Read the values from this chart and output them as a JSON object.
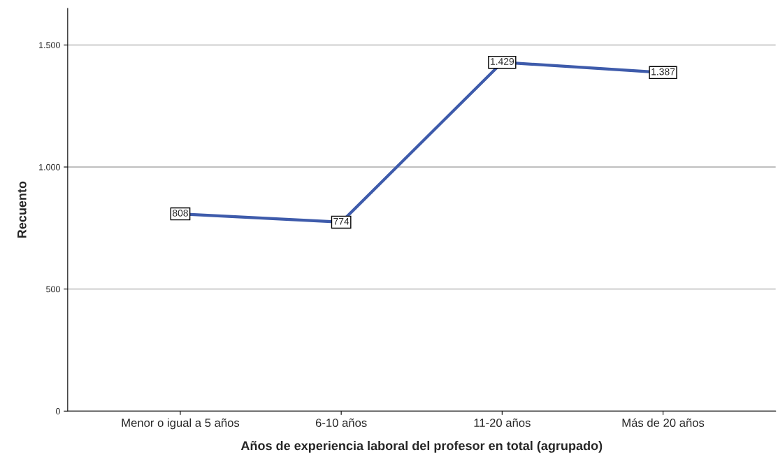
{
  "chart_data": {
    "type": "line",
    "xlabel": "Años de experiencia laboral del profesor en total (agrupado)",
    "ylabel": "Recuento",
    "categories": [
      "Menor o igual a 5 años",
      "6-10 años",
      "11-20 años",
      "Más de 20 años"
    ],
    "series": [
      {
        "color": "#3e5bab",
        "values": [
          808,
          774,
          1429,
          1387
        ],
        "value_labels": [
          "808",
          "774",
          "1.429",
          "1.387"
        ]
      }
    ],
    "ylim": [
      0,
      1650
    ],
    "yticks": [
      0,
      500,
      {
        "value": 1000,
        "label": "1.000"
      },
      {
        "value": 1500,
        "label": "1.500"
      }
    ],
    "grid": "y",
    "marker": "square",
    "line_style": "solid",
    "legend": false
  }
}
